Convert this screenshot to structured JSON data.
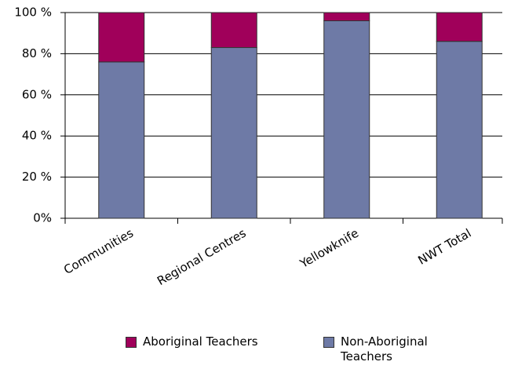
{
  "chart_data": {
    "type": "stacked_bar",
    "categories": [
      "Communities",
      "Regional Centres",
      "Yellowknife",
      "NWT Total"
    ],
    "series": [
      {
        "name": "Aboriginal Teachers",
        "color": "#a0005a",
        "values": [
          24,
          17,
          4,
          14
        ]
      },
      {
        "name": "Non-Aboriginal Teachers",
        "color": "#6e7aa6",
        "values": [
          76,
          83,
          96,
          86
        ]
      }
    ],
    "ylim": [
      0,
      100
    ],
    "yticks": [
      {
        "value": 0,
        "label": "0%"
      },
      {
        "value": 20,
        "label": "20 %"
      },
      {
        "value": 40,
        "label": "40 %"
      },
      {
        "value": 60,
        "label": "60 %"
      },
      {
        "value": 80,
        "label": "80 %"
      },
      {
        "value": 100,
        "label": "100 %"
      }
    ],
    "grid": true,
    "legend": "bottom"
  }
}
